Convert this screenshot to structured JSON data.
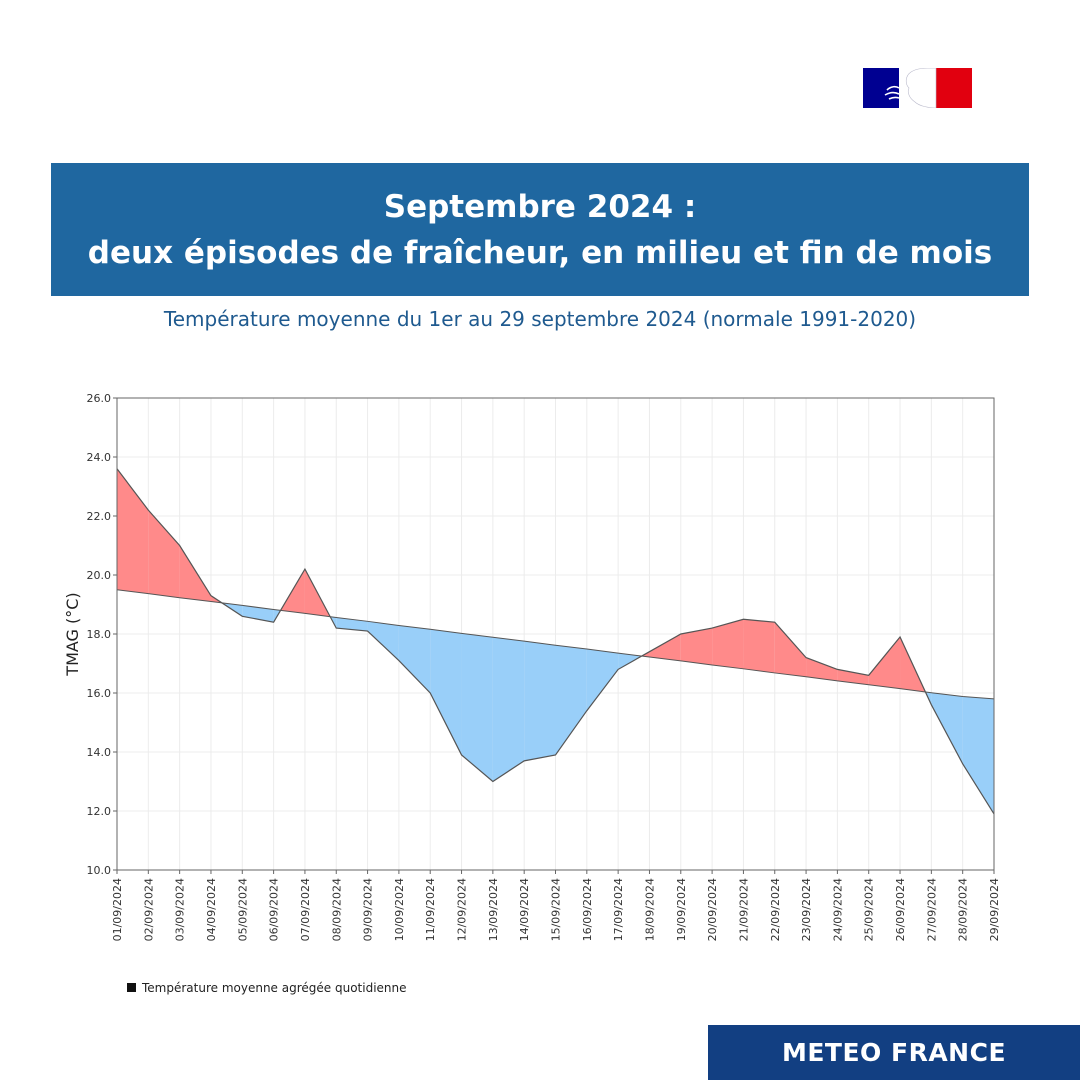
{
  "header": {
    "title_line1": "Septembre 2024 :",
    "title_line2": "deux épisodes de fraîcheur, en milieu et fin de mois",
    "subtitle": "Température moyenne du 1er au 29 septembre 2024 (normale 1991-2020)"
  },
  "footer": {
    "brand": "METEO FRANCE"
  },
  "colors": {
    "banner": "#1f67a0",
    "footer": "#123f82",
    "above_normal": "#ff8a8a",
    "below_normal": "#99cff9"
  },
  "chart_data": {
    "type": "area",
    "ylabel": "TMAG (°C)",
    "ylim": [
      10,
      26
    ],
    "yticks": [
      "10.0",
      "12.0",
      "14.0",
      "16.0",
      "18.0",
      "20.0",
      "22.0",
      "24.0",
      "26.0"
    ],
    "grid": true,
    "legend_position": "bottom-left",
    "categories": [
      "01/09/2024",
      "02/09/2024",
      "03/09/2024",
      "04/09/2024",
      "05/09/2024",
      "06/09/2024",
      "07/09/2024",
      "08/09/2024",
      "09/09/2024",
      "10/09/2024",
      "11/09/2024",
      "12/09/2024",
      "13/09/2024",
      "14/09/2024",
      "15/09/2024",
      "16/09/2024",
      "17/09/2024",
      "18/09/2024",
      "19/09/2024",
      "20/09/2024",
      "21/09/2024",
      "22/09/2024",
      "23/09/2024",
      "24/09/2024",
      "25/09/2024",
      "26/09/2024",
      "27/09/2024",
      "28/09/2024",
      "29/09/2024"
    ],
    "series": [
      {
        "name": "Température moyenne agrégée  quotidienne",
        "values": [
          23.6,
          22.2,
          21.0,
          19.3,
          18.6,
          18.4,
          20.2,
          18.2,
          18.1,
          17.1,
          16.0,
          13.9,
          13.0,
          13.7,
          13.9,
          15.4,
          16.8,
          17.4,
          18.0,
          18.2,
          18.5,
          18.4,
          17.2,
          16.8,
          16.6,
          17.9,
          15.6,
          13.6,
          11.9
        ]
      },
      {
        "values": [
          19.5,
          19.37,
          19.23,
          19.1,
          18.97,
          18.83,
          18.7,
          18.56,
          18.43,
          18.29,
          18.16,
          18.02,
          17.89,
          17.76,
          17.62,
          17.49,
          17.35,
          17.22,
          17.09,
          16.95,
          16.82,
          16.68,
          16.55,
          16.41,
          16.28,
          16.15,
          16.01,
          15.88,
          15.8
        ]
      }
    ]
  }
}
